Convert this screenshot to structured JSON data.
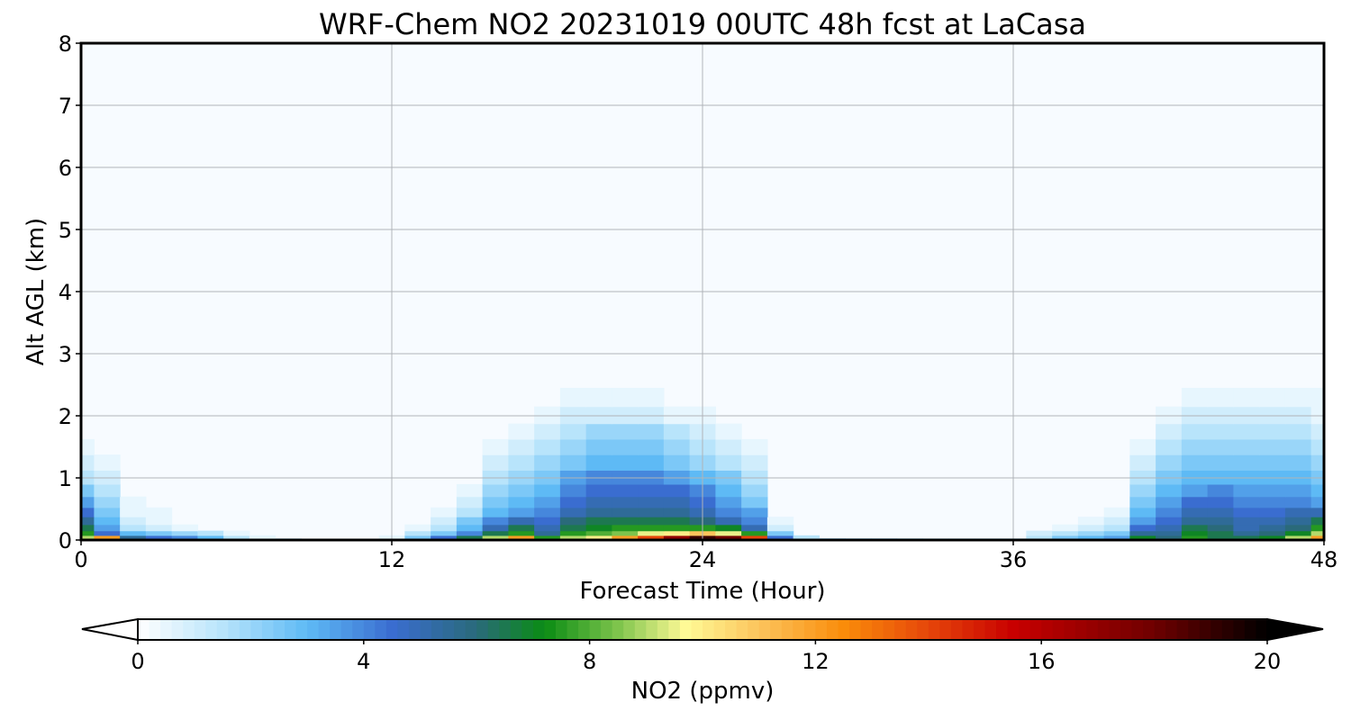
{
  "chart_data": {
    "type": "heatmap",
    "title": "WRF-Chem NO2  20231019 00UTC 48h fcst at LaCasa",
    "xlabel": "Forecast Time (Hour)",
    "ylabel": "Alt AGL (km)",
    "xlim": [
      0,
      48
    ],
    "ylim": [
      0,
      8
    ],
    "xticks": [
      0,
      12,
      24,
      36,
      48
    ],
    "yticks": [
      0,
      1,
      2,
      3,
      4,
      5,
      6,
      7,
      8
    ],
    "grid": true,
    "background_color": "#f7fbff",
    "colorbar": {
      "label": "NO2  (ppmv)",
      "orientation": "horizontal",
      "vmin": 0,
      "vmax": 20,
      "ticks": [
        0,
        4,
        8,
        12,
        16,
        20
      ],
      "extend": "both",
      "colors": [
        {
          "value": 0,
          "color": "#ffffff"
        },
        {
          "value": 1.5,
          "color": "#b8e4fb"
        },
        {
          "value": 3,
          "color": "#5ebaf5"
        },
        {
          "value": 4.5,
          "color": "#3a6dd0"
        },
        {
          "value": 6,
          "color": "#2a6a7a"
        },
        {
          "value": 7.2,
          "color": "#0a8c14"
        },
        {
          "value": 8.5,
          "color": "#7ec44c"
        },
        {
          "value": 9.7,
          "color": "#fffa96"
        },
        {
          "value": 11,
          "color": "#fcc45c"
        },
        {
          "value": 12.5,
          "color": "#fa8c0a"
        },
        {
          "value": 14,
          "color": "#e6460a"
        },
        {
          "value": 15.5,
          "color": "#c80000"
        },
        {
          "value": 18,
          "color": "#6e0000"
        },
        {
          "value": 20,
          "color": "#000000"
        }
      ]
    },
    "x": [
      0,
      1,
      2,
      3,
      4,
      5,
      6,
      7,
      8,
      9,
      10,
      11,
      12,
      13,
      14,
      15,
      16,
      17,
      18,
      19,
      20,
      21,
      22,
      23,
      24,
      25,
      26,
      27,
      28,
      29,
      30,
      31,
      32,
      33,
      34,
      35,
      36,
      37,
      38,
      39,
      40,
      41,
      42,
      43,
      44,
      45,
      46,
      47,
      48
    ],
    "y": [
      0.0,
      0.05,
      0.1,
      0.2,
      0.3,
      0.45,
      0.6,
      0.8,
      1.0,
      1.25,
      1.5,
      1.75,
      2.0,
      2.3,
      2.6,
      3.0
    ],
    "values": [
      [
        12.0,
        14.5,
        8.0,
        6.5,
        5.5,
        4.5,
        3.5,
        2.5,
        1.5,
        0.0,
        0.0,
        0.0,
        1.0,
        4.0,
        6.0,
        7.5,
        10.0,
        14.0,
        9.0,
        10.0,
        12.0,
        15.0,
        17.0,
        20.0,
        20.0,
        20.0,
        17.0,
        8.0,
        4.5,
        3.0,
        2.5,
        2.5,
        2.0,
        1.5,
        1.5,
        1.5,
        1.5,
        2.5,
        3.0,
        3.5,
        4.5,
        9.0,
        7.0,
        9.0,
        7.5,
        7.5,
        8.0,
        10.0,
        14.0
      ],
      [
        9.0,
        12.0,
        5.5,
        4.5,
        4.0,
        3.0,
        1.5,
        0.5,
        0.0,
        0.0,
        0.0,
        0.0,
        0.5,
        2.5,
        4.5,
        6.5,
        9.0,
        12.0,
        7.5,
        9.0,
        10.0,
        12.0,
        14.0,
        17.0,
        19.0,
        18.0,
        14.0,
        4.5,
        1.5,
        0.0,
        0.0,
        0.0,
        0.0,
        0.0,
        0.0,
        0.0,
        0.0,
        1.5,
        2.5,
        3.0,
        3.5,
        7.0,
        6.0,
        7.5,
        6.5,
        6.5,
        7.0,
        9.0,
        12.0
      ],
      [
        7.5,
        4.5,
        3.0,
        2.5,
        2.0,
        1.5,
        0.5,
        0.0,
        0.0,
        0.0,
        0.0,
        0.0,
        0.0,
        1.5,
        2.5,
        4.0,
        6.5,
        7.5,
        5.5,
        7.5,
        8.0,
        8.5,
        9.5,
        10.0,
        11.0,
        9.5,
        7.5,
        2.5,
        0.0,
        0.0,
        0.0,
        0.0,
        0.0,
        0.0,
        0.0,
        0.0,
        0.0,
        1.0,
        1.5,
        2.0,
        2.5,
        5.5,
        5.5,
        7.0,
        6.5,
        5.5,
        6.0,
        7.0,
        9.0
      ],
      [
        6.5,
        3.5,
        1.5,
        1.0,
        0.5,
        0.0,
        0.0,
        0.0,
        0.0,
        0.0,
        0.0,
        0.0,
        0.0,
        0.5,
        1.5,
        3.0,
        5.0,
        6.5,
        5.0,
        6.5,
        7.0,
        7.5,
        7.5,
        7.5,
        7.5,
        7.0,
        5.0,
        1.0,
        0.0,
        0.0,
        0.0,
        0.0,
        0.0,
        0.0,
        0.0,
        0.0,
        0.0,
        0.0,
        0.5,
        1.0,
        1.5,
        4.5,
        5.0,
        6.5,
        6.0,
        5.0,
        5.5,
        6.0,
        7.5
      ],
      [
        5.5,
        3.0,
        1.0,
        0.5,
        0.0,
        0.0,
        0.0,
        0.0,
        0.0,
        0.0,
        0.0,
        0.0,
        0.0,
        0.0,
        1.0,
        2.5,
        4.0,
        5.0,
        4.5,
        6.0,
        6.5,
        6.5,
        6.5,
        6.5,
        6.0,
        5.0,
        4.0,
        0.5,
        0.0,
        0.0,
        0.0,
        0.0,
        0.0,
        0.0,
        0.0,
        0.0,
        0.0,
        0.0,
        0.0,
        0.5,
        1.0,
        3.5,
        4.5,
        5.5,
        5.5,
        5.0,
        5.0,
        5.5,
        6.5
      ],
      [
        4.5,
        2.5,
        0.5,
        0.5,
        0.0,
        0.0,
        0.0,
        0.0,
        0.0,
        0.0,
        0.0,
        0.0,
        0.0,
        0.0,
        0.5,
        1.5,
        3.0,
        3.5,
        4.0,
        5.0,
        5.5,
        5.5,
        5.5,
        5.5,
        5.0,
        4.0,
        3.5,
        0.0,
        0.0,
        0.0,
        0.0,
        0.0,
        0.0,
        0.0,
        0.0,
        0.0,
        0.0,
        0.0,
        0.0,
        0.0,
        0.5,
        3.0,
        4.0,
        5.0,
        5.0,
        4.5,
        4.5,
        5.0,
        5.0
      ],
      [
        3.5,
        2.0,
        0.5,
        0.0,
        0.0,
        0.0,
        0.0,
        0.0,
        0.0,
        0.0,
        0.0,
        0.0,
        0.0,
        0.0,
        0.0,
        1.0,
        2.5,
        3.0,
        3.5,
        4.5,
        5.0,
        5.0,
        5.0,
        5.0,
        4.5,
        3.5,
        2.5,
        0.0,
        0.0,
        0.0,
        0.0,
        0.0,
        0.0,
        0.0,
        0.0,
        0.0,
        0.0,
        0.0,
        0.0,
        0.0,
        0.0,
        2.5,
        3.5,
        4.5,
        4.5,
        4.0,
        4.0,
        4.0,
        3.5
      ],
      [
        2.5,
        1.5,
        0.0,
        0.0,
        0.0,
        0.0,
        0.0,
        0.0,
        0.0,
        0.0,
        0.0,
        0.0,
        0.0,
        0.0,
        0.0,
        0.5,
        2.0,
        2.5,
        3.0,
        4.0,
        4.5,
        4.5,
        4.5,
        4.5,
        4.0,
        3.0,
        2.0,
        0.0,
        0.0,
        0.0,
        0.0,
        0.0,
        0.0,
        0.0,
        0.0,
        0.0,
        0.0,
        0.0,
        0.0,
        0.0,
        0.0,
        2.0,
        3.0,
        3.5,
        4.0,
        3.5,
        3.5,
        3.5,
        3.0
      ],
      [
        1.5,
        1.0,
        0.0,
        0.0,
        0.0,
        0.0,
        0.0,
        0.0,
        0.0,
        0.0,
        0.0,
        0.0,
        0.0,
        0.0,
        0.0,
        0.0,
        1.5,
        2.0,
        2.5,
        3.5,
        4.0,
        4.0,
        4.0,
        3.5,
        3.0,
        2.5,
        1.5,
        0.0,
        0.0,
        0.0,
        0.0,
        0.0,
        0.0,
        0.0,
        0.0,
        0.0,
        0.0,
        0.0,
        0.0,
        0.0,
        0.0,
        1.5,
        2.5,
        3.0,
        3.0,
        3.0,
        3.0,
        3.0,
        2.5
      ],
      [
        1.0,
        0.5,
        0.0,
        0.0,
        0.0,
        0.0,
        0.0,
        0.0,
        0.0,
        0.0,
        0.0,
        0.0,
        0.0,
        0.0,
        0.0,
        0.0,
        1.0,
        1.5,
        2.0,
        2.5,
        3.0,
        3.0,
        3.0,
        2.5,
        2.0,
        1.5,
        1.0,
        0.0,
        0.0,
        0.0,
        0.0,
        0.0,
        0.0,
        0.0,
        0.0,
        0.0,
        0.0,
        0.0,
        0.0,
        0.0,
        0.0,
        1.0,
        2.0,
        2.5,
        2.5,
        2.5,
        2.5,
        2.5,
        2.0
      ],
      [
        0.5,
        0.0,
        0.0,
        0.0,
        0.0,
        0.0,
        0.0,
        0.0,
        0.0,
        0.0,
        0.0,
        0.0,
        0.0,
        0.0,
        0.0,
        0.0,
        0.5,
        1.0,
        1.5,
        2.0,
        2.5,
        2.5,
        2.5,
        2.0,
        1.5,
        1.0,
        0.5,
        0.0,
        0.0,
        0.0,
        0.0,
        0.0,
        0.0,
        0.0,
        0.0,
        0.0,
        0.0,
        0.0,
        0.0,
        0.0,
        0.0,
        0.5,
        1.5,
        2.0,
        2.0,
        2.0,
        2.0,
        2.0,
        1.5
      ],
      [
        0.0,
        0.0,
        0.0,
        0.0,
        0.0,
        0.0,
        0.0,
        0.0,
        0.0,
        0.0,
        0.0,
        0.0,
        0.0,
        0.0,
        0.0,
        0.0,
        0.0,
        0.5,
        1.0,
        1.5,
        2.0,
        2.0,
        2.0,
        1.5,
        1.0,
        0.5,
        0.0,
        0.0,
        0.0,
        0.0,
        0.0,
        0.0,
        0.0,
        0.0,
        0.0,
        0.0,
        0.0,
        0.0,
        0.0,
        0.0,
        0.0,
        0.0,
        1.0,
        1.5,
        1.5,
        1.5,
        1.5,
        1.5,
        1.0
      ],
      [
        0.0,
        0.0,
        0.0,
        0.0,
        0.0,
        0.0,
        0.0,
        0.0,
        0.0,
        0.0,
        0.0,
        0.0,
        0.0,
        0.0,
        0.0,
        0.0,
        0.0,
        0.0,
        0.5,
        1.0,
        1.0,
        1.0,
        1.0,
        0.5,
        0.5,
        0.0,
        0.0,
        0.0,
        0.0,
        0.0,
        0.0,
        0.0,
        0.0,
        0.0,
        0.0,
        0.0,
        0.0,
        0.0,
        0.0,
        0.0,
        0.0,
        0.0,
        0.5,
        1.0,
        1.0,
        1.0,
        1.0,
        1.0,
        0.5
      ],
      [
        0.0,
        0.0,
        0.0,
        0.0,
        0.0,
        0.0,
        0.0,
        0.0,
        0.0,
        0.0,
        0.0,
        0.0,
        0.0,
        0.0,
        0.0,
        0.0,
        0.0,
        0.0,
        0.0,
        0.5,
        0.5,
        0.5,
        0.5,
        0.0,
        0.0,
        0.0,
        0.0,
        0.0,
        0.0,
        0.0,
        0.0,
        0.0,
        0.0,
        0.0,
        0.0,
        0.0,
        0.0,
        0.0,
        0.0,
        0.0,
        0.0,
        0.0,
        0.0,
        0.5,
        0.5,
        0.5,
        0.5,
        0.5,
        0.5
      ],
      [
        0.0,
        0.0,
        0.0,
        0.0,
        0.0,
        0.0,
        0.0,
        0.0,
        0.0,
        0.0,
        0.0,
        0.0,
        0.0,
        0.0,
        0.0,
        0.0,
        0.0,
        0.0,
        0.0,
        0.0,
        0.0,
        0.0,
        0.0,
        0.0,
        0.0,
        0.0,
        0.0,
        0.0,
        0.0,
        0.0,
        0.0,
        0.0,
        0.0,
        0.0,
        0.0,
        0.0,
        0.0,
        0.0,
        0.0,
        0.0,
        0.0,
        0.0,
        0.0,
        0.0,
        0.0,
        0.0,
        0.0,
        0.0,
        0.0
      ],
      [
        0.0,
        0.0,
        0.0,
        0.0,
        0.0,
        0.0,
        0.0,
        0.0,
        0.0,
        0.0,
        0.0,
        0.0,
        0.0,
        0.0,
        0.0,
        0.0,
        0.0,
        0.0,
        0.0,
        0.0,
        0.0,
        0.0,
        0.0,
        0.0,
        0.0,
        0.0,
        0.0,
        0.0,
        0.0,
        0.0,
        0.0,
        0.0,
        0.0,
        0.0,
        0.0,
        0.0,
        0.0,
        0.0,
        0.0,
        0.0,
        0.0,
        0.0,
        0.0,
        0.0,
        0.0,
        0.0,
        0.0,
        0.0,
        0.0
      ]
    ]
  }
}
